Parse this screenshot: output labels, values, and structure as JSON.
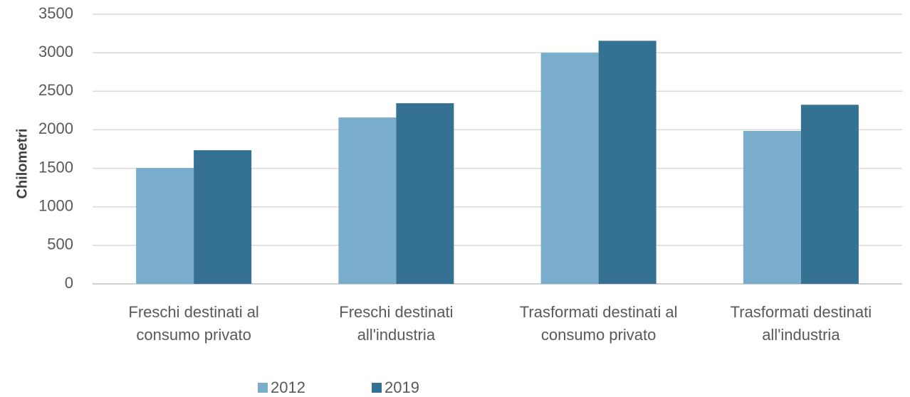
{
  "chart_data": {
    "type": "bar",
    "y_label": "Chilometri",
    "categories": [
      [
        "Freschi destinati al",
        "consumo privato"
      ],
      [
        "Freschi destinati",
        "all'industria"
      ],
      [
        "Trasformati destinati al",
        "consumo privato"
      ],
      [
        "Trasformati destinati",
        "all'industria"
      ]
    ],
    "series": [
      {
        "name": "2012",
        "color": "#7aadcb",
        "values": [
          1505,
          2160,
          3000,
          1985
        ]
      },
      {
        "name": "2019",
        "color": "#357193",
        "values": [
          1735,
          2345,
          3155,
          2325
        ]
      }
    ],
    "ylim": [
      0,
      3500
    ],
    "yticks": [
      0,
      500,
      1000,
      1500,
      2000,
      2500,
      3000,
      3500
    ],
    "grid": true,
    "legend": "bottom"
  }
}
